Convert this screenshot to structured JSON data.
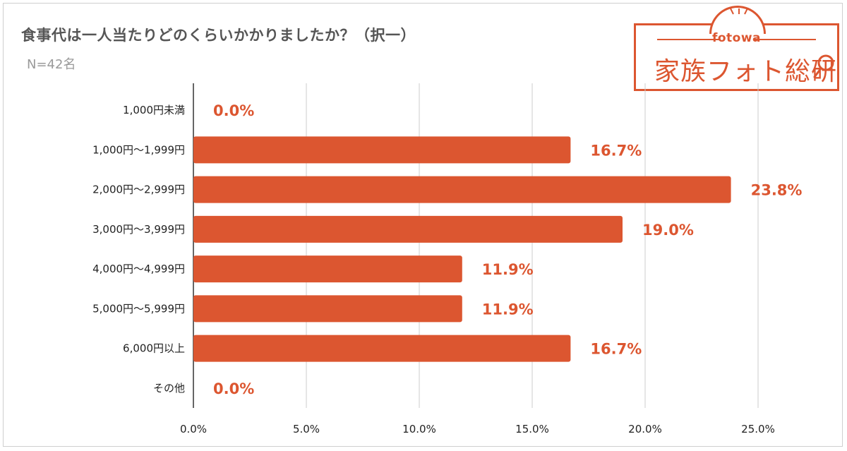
{
  "title": "食事代は一人当たりどのくらいかかりましたか？（択一）",
  "subtitle": "N=42名",
  "logo": {
    "small_text": "fotowa",
    "main_text": "家族フォト総研",
    "icon": "magnifier-icon"
  },
  "colors": {
    "bar": "#dc5630",
    "value_label": "#dc5630",
    "grid": "#cccccc",
    "axis_text": "#222222",
    "title": "#555555"
  },
  "chart_data": {
    "type": "bar",
    "orientation": "horizontal",
    "categories": [
      "1,000円未満",
      "1,000円～1,999円",
      "2,000円～2,999円",
      "3,000円～3,999円",
      "4,000円～4,999円",
      "5,000円～5,999円",
      "6,000円以上",
      "その他"
    ],
    "values": [
      0.0,
      16.7,
      23.8,
      19.0,
      11.9,
      11.9,
      16.7,
      0.0
    ],
    "value_labels": [
      "0.0%",
      "16.7%",
      "23.8%",
      "19.0%",
      "11.9%",
      "11.9%",
      "16.7%",
      "0.0%"
    ],
    "xlim": [
      0,
      27
    ],
    "x_ticks": [
      0,
      5,
      10,
      15,
      20,
      25
    ],
    "x_tick_labels": [
      "0.0%",
      "5.0%",
      "10.0%",
      "15.0%",
      "20.0%",
      "25.0%"
    ],
    "grid": true,
    "legend": "none",
    "title": "食事代は一人当たりどのくらいかかりましたか？（択一）",
    "xlabel": "",
    "ylabel": ""
  }
}
